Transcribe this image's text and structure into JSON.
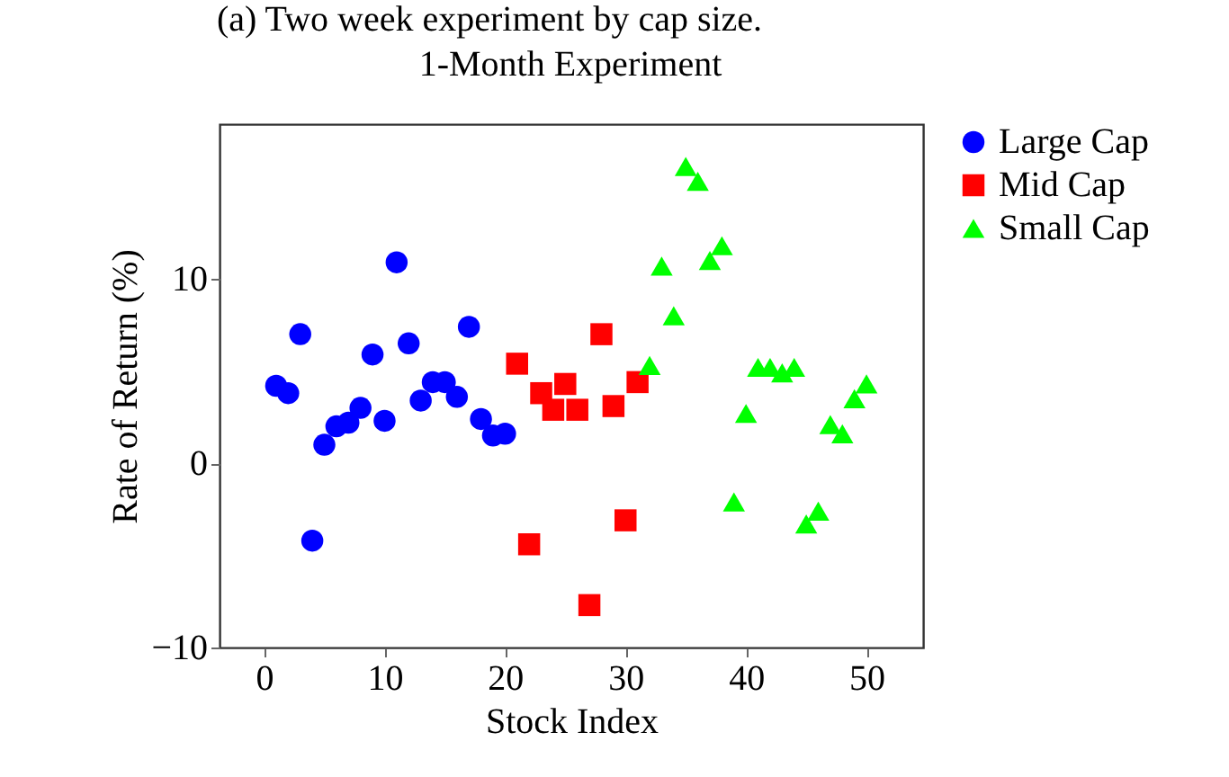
{
  "chart_data": {
    "type": "scatter",
    "title": "1-Month Experiment",
    "annotations": [
      "(a) Two week experiment by cap size."
    ],
    "xlabel": "Stock Index",
    "ylabel": "Rate of Return (%)",
    "xlim": [
      -3.7,
      54.7
    ],
    "xticks": [
      0,
      10,
      20,
      30,
      40,
      50
    ],
    "ylim": [
      -10,
      18.4
    ],
    "yticks": [
      -10,
      0,
      10
    ],
    "grid": false,
    "legend": "right",
    "series": [
      {
        "name": "Large Cap",
        "color": "#0000ff",
        "marker": "circle",
        "x": [
          1,
          2,
          3,
          4,
          5,
          6,
          7,
          8,
          9,
          10,
          11,
          12,
          13,
          14,
          15,
          16,
          17,
          18,
          19,
          20
        ],
        "values": [
          4.2,
          3.8,
          7.0,
          -4.2,
          1.0,
          2.0,
          2.2,
          3.0,
          5.9,
          2.3,
          10.9,
          6.5,
          3.4,
          4.4,
          4.4,
          3.6,
          7.4,
          2.4,
          1.5,
          1.6
        ]
      },
      {
        "name": "Mid Cap",
        "color": "#ff0000",
        "marker": "square",
        "x": [
          21,
          22,
          23,
          24,
          25,
          26,
          27,
          28,
          29,
          30,
          31
        ],
        "values": [
          5.4,
          -4.4,
          3.8,
          2.9,
          4.3,
          2.9,
          -7.7,
          7.0,
          3.1,
          -3.1,
          4.4
        ]
      },
      {
        "name": "Small Cap",
        "color": "#00ff00",
        "marker": "triangle",
        "x": [
          32,
          33,
          34,
          35,
          36,
          37,
          38,
          39,
          40,
          41,
          42,
          43,
          44,
          45,
          46,
          47,
          48,
          49,
          50
        ],
        "values": [
          5.3,
          10.7,
          8.0,
          16.1,
          15.3,
          11.0,
          11.8,
          -2.1,
          2.7,
          5.2,
          5.2,
          4.9,
          5.2,
          -3.3,
          -2.6,
          2.1,
          1.6,
          3.5,
          4.3
        ]
      }
    ]
  }
}
